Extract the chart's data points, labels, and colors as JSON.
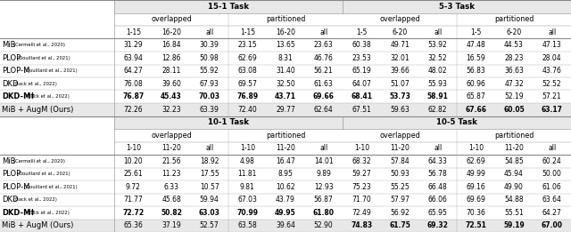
{
  "top_table": {
    "task_headers": [
      "15-1 Task",
      "5-3 Task"
    ],
    "sub_headers": [
      "overlapped",
      "partitioned",
      "overlapped",
      "partitioned"
    ],
    "col_labels": [
      "1-15",
      "16-20",
      "all",
      "1-15",
      "16-20",
      "all",
      "1-5",
      "6-20",
      "all",
      "1-5",
      "6-20",
      "all"
    ],
    "methods": [
      [
        "MiB",
        "(Cermelli et al., 2020)"
      ],
      [
        "PLOP",
        "(Douillard et al., 2021)"
      ],
      [
        "PLOP-M",
        "(Douillard et al., 2021)"
      ],
      [
        "DKD",
        "(Back et al., 2022)"
      ],
      [
        "DKD-M†",
        "(Back et al., 2022)"
      ],
      [
        "MiB + AugM (Ours)",
        ""
      ]
    ],
    "method_bold": [
      false,
      false,
      false,
      false,
      true,
      false
    ],
    "data": [
      [
        31.29,
        16.84,
        30.39,
        23.15,
        13.65,
        23.63,
        60.38,
        49.71,
        53.92,
        47.48,
        44.53,
        47.13
      ],
      [
        63.94,
        12.86,
        50.98,
        62.69,
        8.31,
        46.76,
        23.53,
        32.01,
        32.52,
        16.59,
        28.23,
        28.04
      ],
      [
        64.27,
        28.11,
        55.92,
        63.08,
        31.4,
        56.21,
        65.19,
        39.66,
        48.02,
        56.83,
        36.63,
        43.76
      ],
      [
        76.08,
        39.6,
        67.93,
        69.57,
        32.5,
        61.63,
        64.07,
        51.07,
        55.93,
        60.96,
        47.32,
        52.52
      ],
      [
        76.87,
        45.43,
        70.03,
        76.89,
        43.71,
        69.66,
        68.41,
        53.73,
        58.91,
        65.87,
        52.19,
        57.21
      ],
      [
        72.26,
        32.23,
        63.39,
        72.4,
        29.77,
        62.64,
        67.51,
        59.63,
        62.82,
        67.66,
        60.05,
        63.17
      ]
    ],
    "bold_cols": [
      [],
      [],
      [],
      [],
      [
        0,
        1,
        2,
        3,
        4,
        5,
        6,
        7,
        8
      ],
      [
        9,
        10,
        11
      ]
    ]
  },
  "bottom_table": {
    "task_headers": [
      "10-1 Task",
      "10-5 Task"
    ],
    "sub_headers": [
      "overlapped",
      "partitioned",
      "overlapped",
      "partitioned"
    ],
    "col_labels": [
      "1-10",
      "11-20",
      "all",
      "1-10",
      "11-20",
      "all",
      "1-10",
      "11-20",
      "all",
      "1-10",
      "11-20",
      "all"
    ],
    "methods": [
      [
        "MiB",
        "(Cermelli et al., 2020)"
      ],
      [
        "PLOP",
        "(Douillard et al., 2021)"
      ],
      [
        "PLOP-M",
        "(Douillard et al., 2021)"
      ],
      [
        "DKD",
        "(Back et al., 2022)"
      ],
      [
        "DKD-M†",
        "(Back et al., 2022)"
      ],
      [
        "MiB + AugM (Ours)",
        ""
      ]
    ],
    "method_bold": [
      false,
      false,
      false,
      false,
      true,
      false
    ],
    "data": [
      [
        10.2,
        21.56,
        18.92,
        4.98,
        16.47,
        14.01,
        68.32,
        57.84,
        64.33,
        62.69,
        54.85,
        60.24
      ],
      [
        25.61,
        11.23,
        17.55,
        11.81,
        8.95,
        9.89,
        59.27,
        50.93,
        56.78,
        49.99,
        45.94,
        50.0
      ],
      [
        9.72,
        6.33,
        10.57,
        9.81,
        10.62,
        12.93,
        75.23,
        55.25,
        66.48,
        69.16,
        49.9,
        61.06
      ],
      [
        71.77,
        45.68,
        59.94,
        67.03,
        43.79,
        56.87,
        71.7,
        57.97,
        66.06,
        69.69,
        54.88,
        63.64
      ],
      [
        72.72,
        50.82,
        63.03,
        70.99,
        49.95,
        61.8,
        72.49,
        56.92,
        65.95,
        70.36,
        55.51,
        64.27
      ],
      [
        65.36,
        37.19,
        52.57,
        63.58,
        39.64,
        52.9,
        74.83,
        61.75,
        69.32,
        72.51,
        59.19,
        67.0
      ]
    ],
    "bold_cols": [
      [],
      [],
      [],
      [],
      [
        0,
        1,
        2,
        3,
        4,
        5
      ],
      [
        6,
        7,
        8,
        9,
        10,
        11
      ]
    ]
  }
}
